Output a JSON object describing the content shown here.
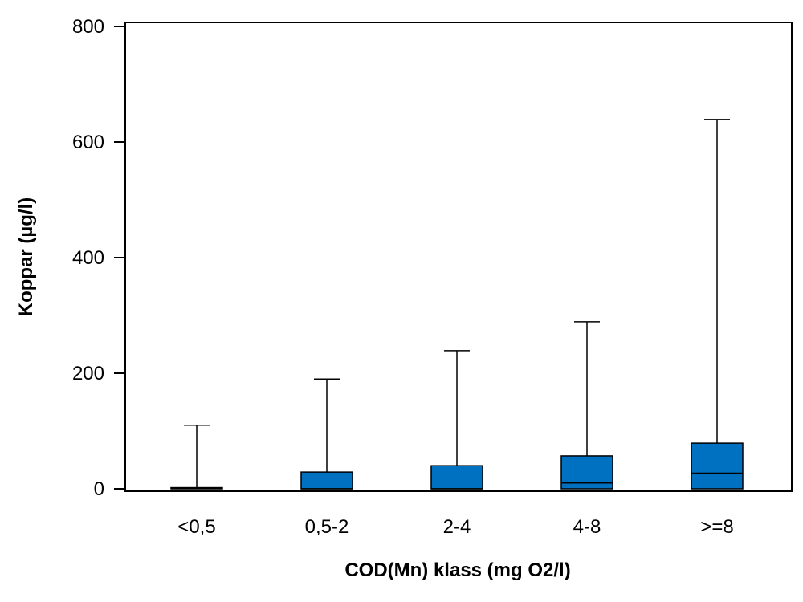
{
  "chart_data": {
    "type": "boxplot",
    "title": "",
    "xlabel": "COD(Mn) klass (mg O2/l)",
    "ylabel": "Koppar (µg/l)",
    "ylim": [
      0,
      800
    ],
    "yticks": [
      0,
      200,
      400,
      600,
      800
    ],
    "grid": false,
    "categories": [
      "<0,5",
      "0,5-2",
      "2-4",
      "4-8",
      ">=8"
    ],
    "boxes": [
      {
        "category": "<0,5",
        "min": 0,
        "q1": 0,
        "median": 1,
        "q3": 2,
        "max": 110
      },
      {
        "category": "0,5-2",
        "min": 0,
        "q1": 0,
        "median": 0,
        "q3": 29,
        "max": 190
      },
      {
        "category": "2-4",
        "min": 0,
        "q1": 0,
        "median": 0,
        "q3": 40,
        "max": 239
      },
      {
        "category": "4-8",
        "min": 0,
        "q1": 0,
        "median": 10,
        "q3": 57,
        "max": 289
      },
      {
        "category": ">=8",
        "min": 0,
        "q1": 0,
        "median": 27,
        "q3": 79,
        "max": 639
      }
    ],
    "box_color": "#0070C0"
  }
}
